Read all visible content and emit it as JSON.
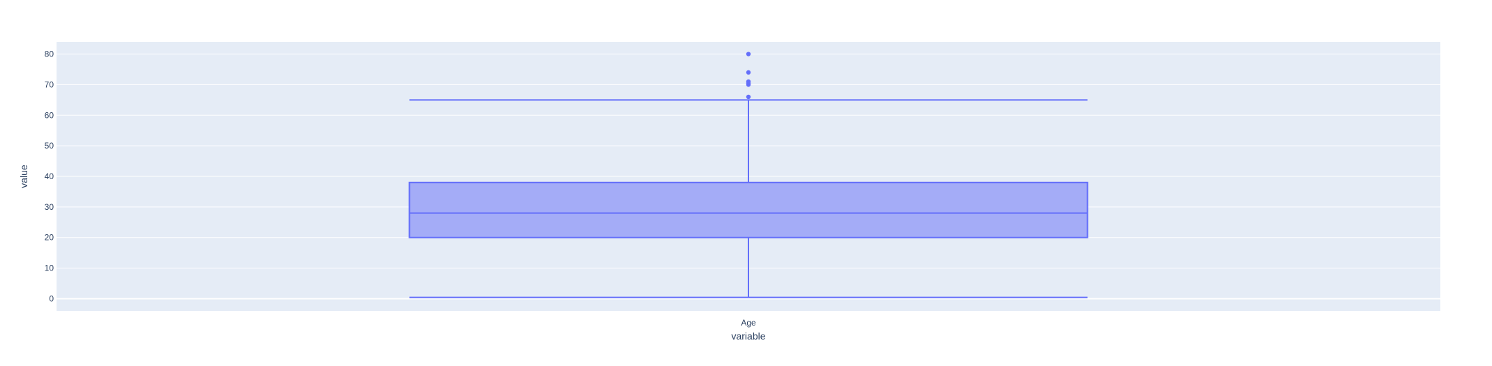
{
  "chart_data": {
    "type": "box",
    "xlabel": "variable",
    "ylabel": "value",
    "categories": [
      "Age"
    ],
    "ylim": [
      -4,
      84
    ],
    "yticks": [
      0,
      10,
      20,
      30,
      40,
      50,
      60,
      70,
      80
    ],
    "ytick_labels": [
      "0",
      "10",
      "20",
      "30",
      "40",
      "50",
      "60",
      "70",
      "80"
    ],
    "grid": true,
    "series": [
      {
        "category": "Age",
        "min": 0.42,
        "q1": 20,
        "median": 28,
        "q3": 38,
        "max": 65,
        "outliers": [
          66,
          70,
          70.5,
          71,
          74,
          80
        ]
      }
    ],
    "colors": {
      "plot_bg": "#e5ecf6",
      "grid": "#ffffff",
      "box_line": "#636efa",
      "box_fill": "#a4acf7",
      "text": "#2a3f5f"
    }
  }
}
